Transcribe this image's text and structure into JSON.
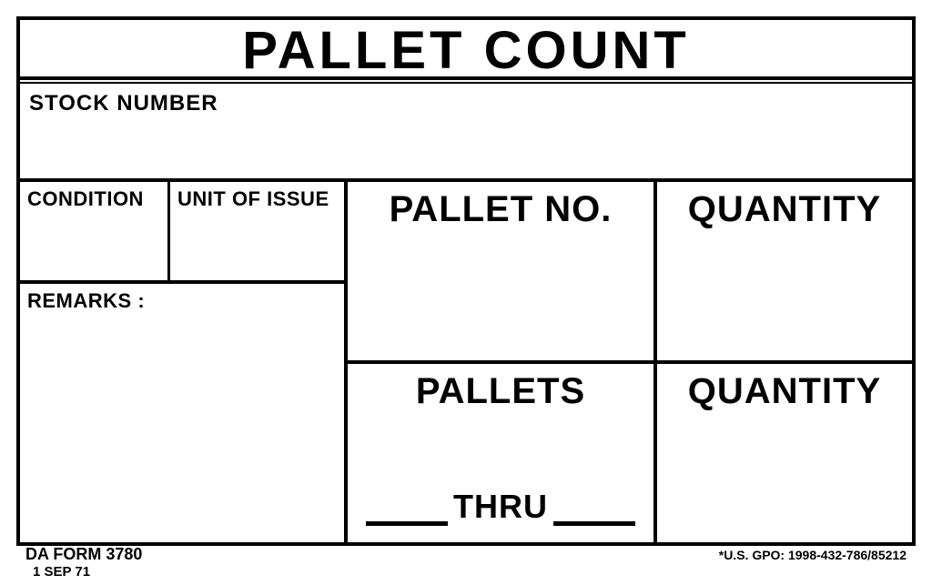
{
  "form": {
    "title": "PALLET COUNT",
    "stock_number_label": "STOCK NUMBER",
    "condition_label": "CONDITION",
    "unit_of_issue_label": "UNIT OF  ISSUE",
    "remarks_label": "REMARKS :",
    "pallet_no_label": "PALLET NO.",
    "quantity_label_1": "QUANTITY",
    "pallets_label": "PALLETS",
    "thru_label": "THRU",
    "quantity_label_2": "QUANTITY"
  },
  "footer": {
    "form_id": "DA FORM 3780",
    "form_date": "1 SEP 71",
    "gpo": "*U.S. GPO: 1998-432-786/85212"
  },
  "style": {
    "border_color": "#000000",
    "background_color": "#ffffff",
    "border_width_outer": 4,
    "border_width_inner": 3,
    "title_fontsize": 58,
    "big_label_fontsize": 40,
    "small_label_fontsize": 22,
    "stock_label_fontsize": 24,
    "thru_fontsize": 36,
    "footer_left_fontsize": 18,
    "footer_right_fontsize": 14,
    "font_weight": 900
  }
}
